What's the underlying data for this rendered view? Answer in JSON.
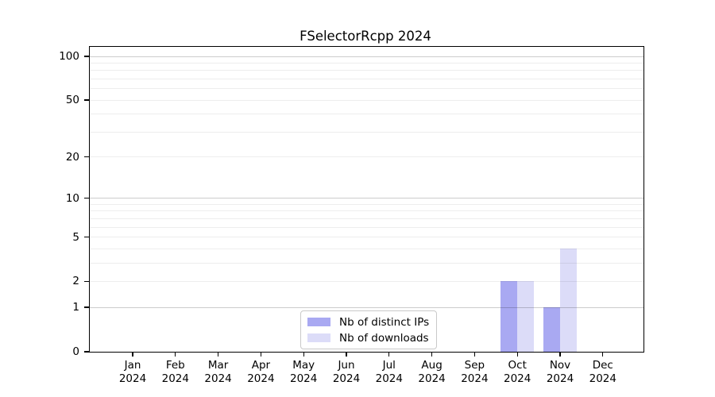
{
  "figure": {
    "title": "FSelectorRcpp 2024"
  },
  "chart_data": {
    "type": "bar",
    "title": "FSelectorRcpp 2024",
    "categories": [
      "Jan 2024",
      "Feb 2024",
      "Mar 2024",
      "Apr 2024",
      "May 2024",
      "Jun 2024",
      "Jul 2024",
      "Aug 2024",
      "Sep 2024",
      "Oct 2024",
      "Nov 2024",
      "Dec 2024"
    ],
    "series": [
      {
        "name": "Nb of distinct IPs",
        "color": "#a9a9f2",
        "values": [
          0,
          0,
          0,
          0,
          0,
          0,
          0,
          0,
          0,
          2,
          1,
          0
        ]
      },
      {
        "name": "Nb of downloads",
        "color": "#dcdcf8",
        "values": [
          0,
          0,
          0,
          0,
          0,
          0,
          0,
          0,
          0,
          2,
          4,
          0
        ]
      }
    ],
    "xlabel": "",
    "ylabel": "",
    "yscale": "log1p",
    "ylim": [
      0,
      101
    ],
    "yticks": [
      0,
      1,
      2,
      5,
      10,
      20,
      50,
      100
    ],
    "grid": "horizontal",
    "grid_minor_values": [
      2,
      3,
      4,
      5,
      6,
      7,
      8,
      9,
      20,
      30,
      40,
      50,
      60,
      70,
      80,
      90
    ],
    "grid_major_values": [
      1,
      10,
      100
    ],
    "legend_position": "lower-center-inside",
    "axis_color": "#000000",
    "grid_major_color": "rgba(0,0,0,0.20)",
    "grid_minor_color": "rgba(0,0,0,0.07)",
    "background_color": "#ffffff"
  }
}
